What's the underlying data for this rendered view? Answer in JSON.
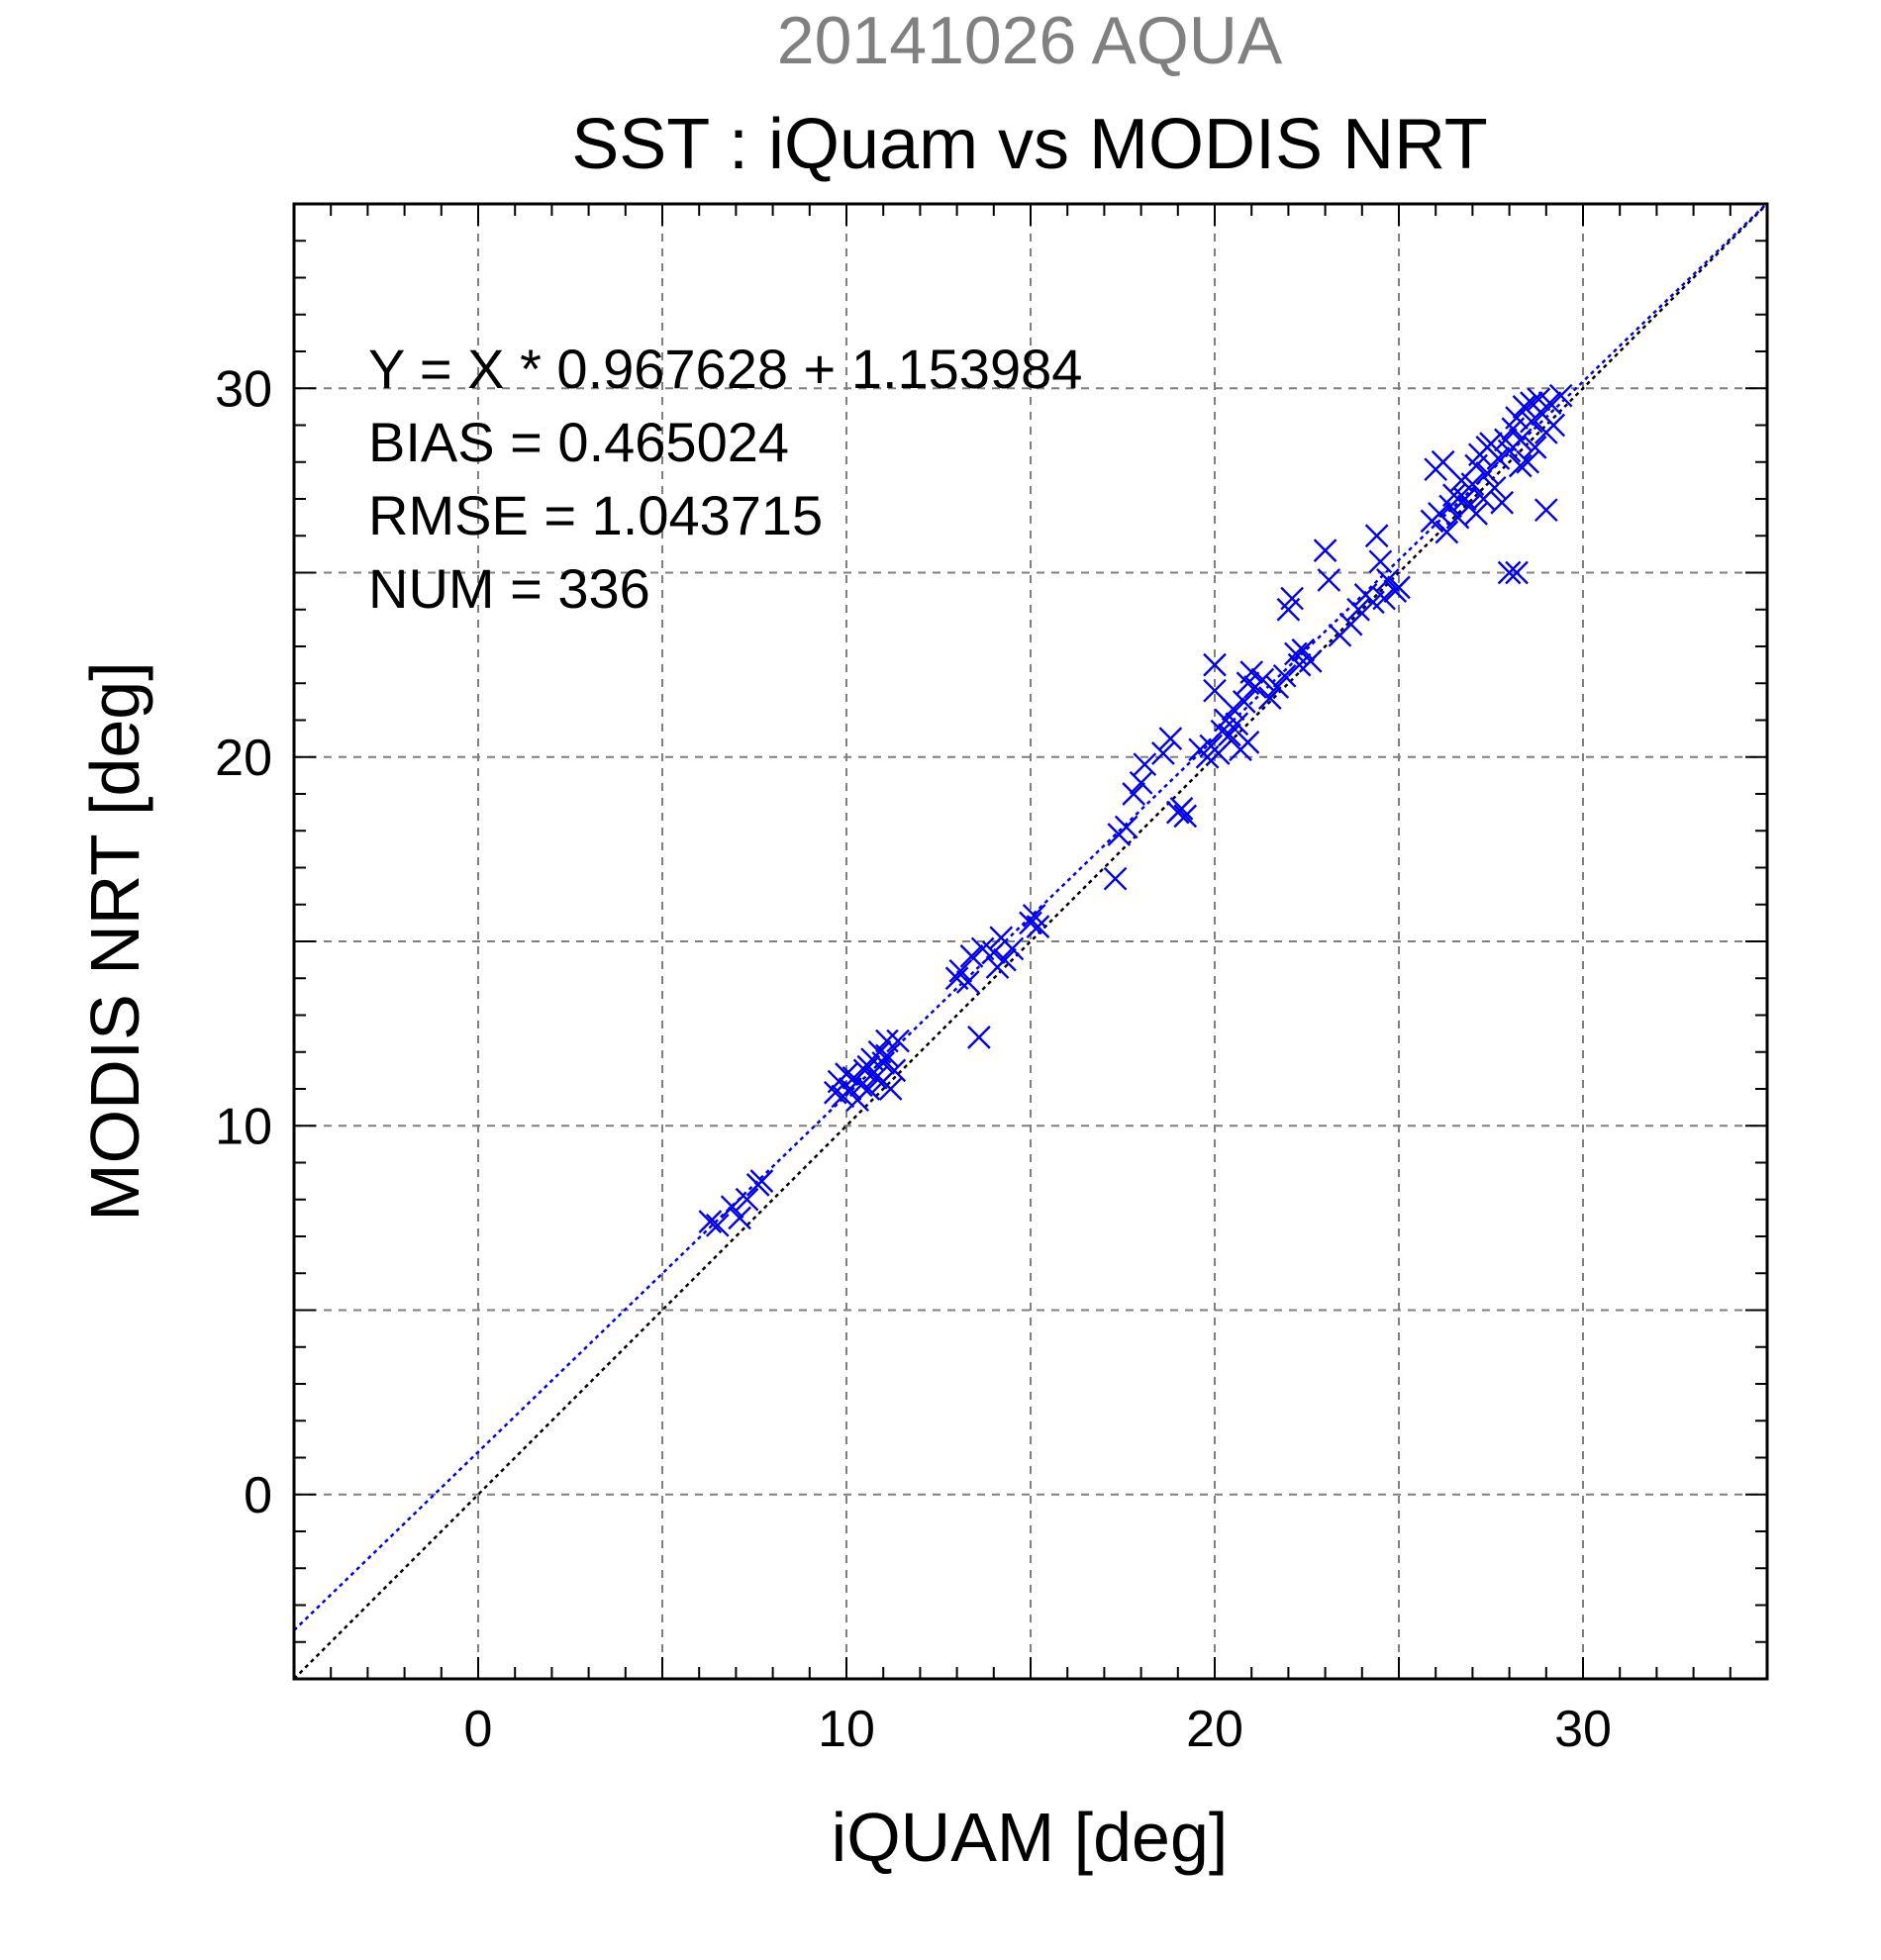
{
  "chart_data": {
    "type": "scatter",
    "date_title": "20141026 AQUA",
    "title": "SST : iQuam vs MODIS NRT",
    "xlabel": "iQUAM [deg]",
    "ylabel": "MODIS NRT [deg]",
    "xlim": [
      -5,
      35
    ],
    "ylim": [
      -5,
      35
    ],
    "xticks": [
      0,
      10,
      20,
      30
    ],
    "yticks": [
      0,
      10,
      20,
      30
    ],
    "x_tick_labels": [
      "0",
      "10",
      "20",
      "30"
    ],
    "y_tick_labels": [
      "0",
      "10",
      "20",
      "30"
    ],
    "grid": true,
    "colors": {
      "points": "#0000ee",
      "fit_line": "#0000ee",
      "identity_line": "#000000",
      "grid": "#7f7f7f",
      "date_title": "#808080"
    },
    "stats": [
      "Y = X * 0.967628 + 1.153984",
      "BIAS = 0.465024",
      "RMSE = 1.043715",
      "NUM = 336"
    ],
    "fit": {
      "slope": 0.967628,
      "intercept": 1.153984
    },
    "identity": {
      "slope": 1,
      "intercept": 0
    },
    "marker": "x",
    "points": [
      [
        6.3,
        7.4
      ],
      [
        6.5,
        7.3
      ],
      [
        6.9,
        7.8
      ],
      [
        7.1,
        7.5
      ],
      [
        7.3,
        8.0
      ],
      [
        7.6,
        8.4
      ],
      [
        7.7,
        8.5
      ],
      [
        9.7,
        10.9
      ],
      [
        9.8,
        11.2
      ],
      [
        9.9,
        10.8
      ],
      [
        10.0,
        11.4
      ],
      [
        10.1,
        11.0
      ],
      [
        10.2,
        11.3
      ],
      [
        10.3,
        10.7
      ],
      [
        10.4,
        11.1
      ],
      [
        10.5,
        11.5
      ],
      [
        10.6,
        11.0
      ],
      [
        10.7,
        11.8
      ],
      [
        10.8,
        11.3
      ],
      [
        10.9,
        12.0
      ],
      [
        11.0,
        11.2
      ],
      [
        11.0,
        11.7
      ],
      [
        11.1,
        12.3
      ],
      [
        11.2,
        11.0
      ],
      [
        11.3,
        11.5
      ],
      [
        11.4,
        12.3
      ],
      [
        11.1,
        11.9
      ],
      [
        10.6,
        11.6
      ],
      [
        13.0,
        14.0
      ],
      [
        13.1,
        14.2
      ],
      [
        13.3,
        13.9
      ],
      [
        13.4,
        14.6
      ],
      [
        13.6,
        12.4
      ],
      [
        13.7,
        14.8
      ],
      [
        14.0,
        14.7
      ],
      [
        14.1,
        14.3
      ],
      [
        14.2,
        15.1
      ],
      [
        14.3,
        14.5
      ],
      [
        14.5,
        14.8
      ],
      [
        15.0,
        15.5
      ],
      [
        15.1,
        15.7
      ],
      [
        15.2,
        15.4
      ],
      [
        17.3,
        16.7
      ],
      [
        17.4,
        17.9
      ],
      [
        17.6,
        18.1
      ],
      [
        17.8,
        19.0
      ],
      [
        18.0,
        19.3
      ],
      [
        18.1,
        19.8
      ],
      [
        18.6,
        20.1
      ],
      [
        18.8,
        20.5
      ],
      [
        19.0,
        18.5
      ],
      [
        19.1,
        18.6
      ],
      [
        19.2,
        18.4
      ],
      [
        19.6,
        20.2
      ],
      [
        19.8,
        20.0
      ],
      [
        19.9,
        20.3
      ],
      [
        20.0,
        21.8
      ],
      [
        20.0,
        22.5
      ],
      [
        20.1,
        20.1
      ],
      [
        20.2,
        20.7
      ],
      [
        20.3,
        21.0
      ],
      [
        20.4,
        20.6
      ],
      [
        20.5,
        21.3
      ],
      [
        20.6,
        20.9
      ],
      [
        20.7,
        20.2
      ],
      [
        20.8,
        21.5
      ],
      [
        20.9,
        20.4
      ],
      [
        20.9,
        22.0
      ],
      [
        21.0,
        22.3
      ],
      [
        21.1,
        21.9
      ],
      [
        21.3,
        22.1
      ],
      [
        21.5,
        21.6
      ],
      [
        21.7,
        21.9
      ],
      [
        21.9,
        22.2
      ],
      [
        22.0,
        24.0
      ],
      [
        22.1,
        24.3
      ],
      [
        22.2,
        22.8
      ],
      [
        22.3,
        22.5
      ],
      [
        22.4,
        22.9
      ],
      [
        22.6,
        22.6
      ],
      [
        23.0,
        25.6
      ],
      [
        23.1,
        24.8
      ],
      [
        23.4,
        23.3
      ],
      [
        23.7,
        23.6
      ],
      [
        23.9,
        24.0
      ],
      [
        24.1,
        24.4
      ],
      [
        24.3,
        24.2
      ],
      [
        24.4,
        26.0
      ],
      [
        24.5,
        25.3
      ],
      [
        24.6,
        24.3
      ],
      [
        24.7,
        24.8
      ],
      [
        24.9,
        24.5
      ],
      [
        25.0,
        24.6
      ],
      [
        25.9,
        26.4
      ],
      [
        26.0,
        27.8
      ],
      [
        26.1,
        26.6
      ],
      [
        26.2,
        28.0
      ],
      [
        26.3,
        26.1
      ],
      [
        26.4,
        26.8
      ],
      [
        26.5,
        27.1
      ],
      [
        26.6,
        26.5
      ],
      [
        26.7,
        27.5
      ],
      [
        26.8,
        27.0
      ],
      [
        26.9,
        26.8
      ],
      [
        27.0,
        27.4
      ],
      [
        27.1,
        26.6
      ],
      [
        27.1,
        27.9
      ],
      [
        27.2,
        28.2
      ],
      [
        27.3,
        27.0
      ],
      [
        27.4,
        27.7
      ],
      [
        27.5,
        28.5
      ],
      [
        27.6,
        27.3
      ],
      [
        27.7,
        28.1
      ],
      [
        27.8,
        26.9
      ],
      [
        27.9,
        28.6
      ],
      [
        28.0,
        25.0
      ],
      [
        28.2,
        25.0
      ],
      [
        28.0,
        28.3
      ],
      [
        28.1,
        28.9
      ],
      [
        28.2,
        29.2
      ],
      [
        28.3,
        28.6
      ],
      [
        28.4,
        29.5
      ],
      [
        28.5,
        28.0
      ],
      [
        28.6,
        29.1
      ],
      [
        28.7,
        28.4
      ],
      [
        28.8,
        29.7
      ],
      [
        28.9,
        29.3
      ],
      [
        29.0,
        26.7
      ],
      [
        29.0,
        28.8
      ],
      [
        29.1,
        29.6
      ],
      [
        29.2,
        29.0
      ],
      [
        29.4,
        29.8
      ],
      [
        28.3,
        27.9
      ],
      [
        27.4,
        28.4
      ],
      [
        28.6,
        29.6
      ]
    ]
  }
}
